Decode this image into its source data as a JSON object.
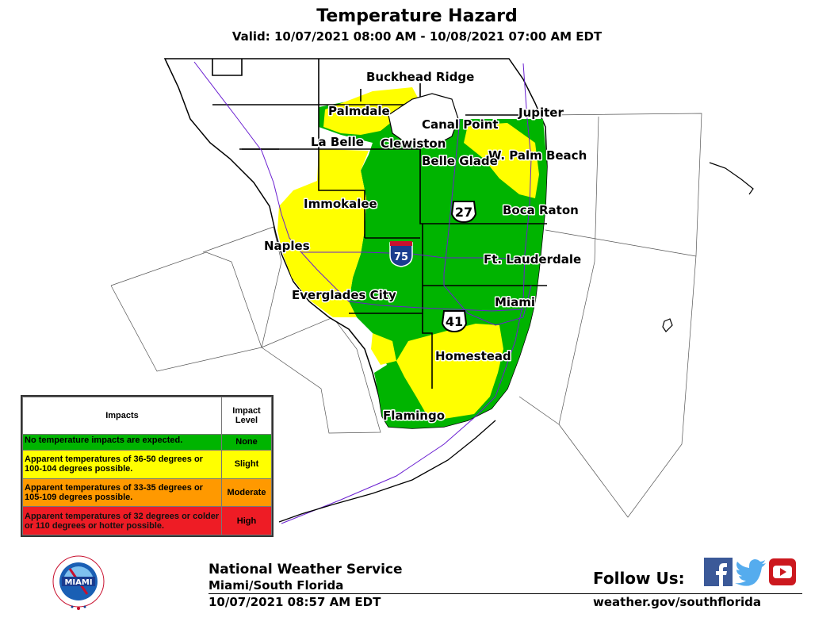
{
  "header": {
    "title": "Temperature Hazard",
    "subtitle": "Valid: 10/07/2021 08:00 AM - 10/08/2021 07:00 AM EDT"
  },
  "map": {
    "cities": {
      "buckhead_ridge": "Buckhead Ridge",
      "palmdale": "Palmdale",
      "canal_point": "Canal Point",
      "jupiter": "Jupiter",
      "la_belle": "La Belle",
      "clewiston": "Clewiston",
      "w_palm_beach": "W. Palm Beach",
      "belle_glade": "Belle Glade",
      "immokalee": "Immokalee",
      "boca_raton": "Boca Raton",
      "naples": "Naples",
      "ft_lauderdale": "Ft. Lauderdale",
      "everglades_city": "Everglades City",
      "miami": "Miami",
      "homestead": "Homestead",
      "flamingo": "Flamingo"
    },
    "shields": {
      "interstate": "75",
      "us27": "27",
      "us41": "41"
    },
    "colors": {
      "none": "#00b400",
      "slight": "#ffff00",
      "moderate": "#ff9900",
      "high": "#ee1c25",
      "county_line": "#000000",
      "roads": "#6a1fd1"
    }
  },
  "legend": {
    "col_impacts": "Impacts",
    "col_level": "Impact Level",
    "rows": [
      {
        "text": "No temperature impacts are expected.",
        "level": "None",
        "color": "#00b400"
      },
      {
        "text": "Apparent temperatures of 36-50 degrees or 100-104 degrees possible.",
        "level": "Slight",
        "color": "#ffff00"
      },
      {
        "text": "Apparent temperatures of 33-35 degrees or 105-109 degrees possible.",
        "level": "Moderate",
        "color": "#ff9900"
      },
      {
        "text": "Apparent temperatures of 32 degrees or colder or 110 degrees or hotter possible.",
        "level": "High",
        "color": "#ee1c25"
      }
    ]
  },
  "footer": {
    "logo_text": "MIAMI",
    "logo_ring": "NATIONAL WEATHER SERVICE",
    "agency": "National Weather Service",
    "office": "Miami/South Florida",
    "issued": "10/07/2021 08:57 AM EDT",
    "follow": "Follow Us:",
    "website": "weather.gov/southflorida"
  }
}
